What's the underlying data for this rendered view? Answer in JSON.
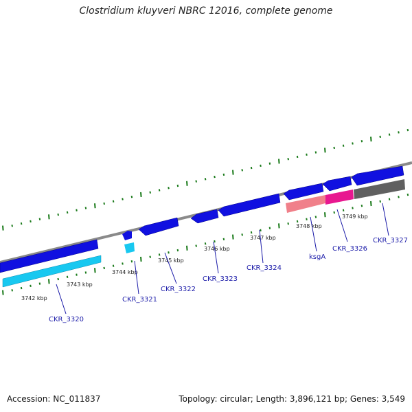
{
  "header": {
    "title": "Clostridium kluyveri NBRC 12016, complete genome"
  },
  "footer": {
    "accession": "Accession: NC_011837",
    "topology": "Topology: circular; Length: 3,896,121 bp; Genes: 3,549"
  },
  "colors": {
    "gene_blue": "#1010e0",
    "gene_cyan": "#18c8f0",
    "gene_pink": "#f0808a",
    "gene_magenta": "#e81890",
    "gene_gray": "#606060",
    "backbone": "#8a8a8a",
    "tick_green": "#1a7a1a",
    "label_blue": "#1a1aa8"
  },
  "position_labels": [
    "3742 kbp",
    "3743 kbp",
    "3744 kbp",
    "3745 kbp",
    "3746 kbp",
    "3747 kbp",
    "3748 kbp",
    "3749 kbp"
  ],
  "gene_labels": [
    "CKR_3320",
    "CKR_3321",
    "CKR_3322",
    "CKR_3323",
    "CKR_3324",
    "ksgA",
    "CKR_3326",
    "CKR_3327"
  ]
}
